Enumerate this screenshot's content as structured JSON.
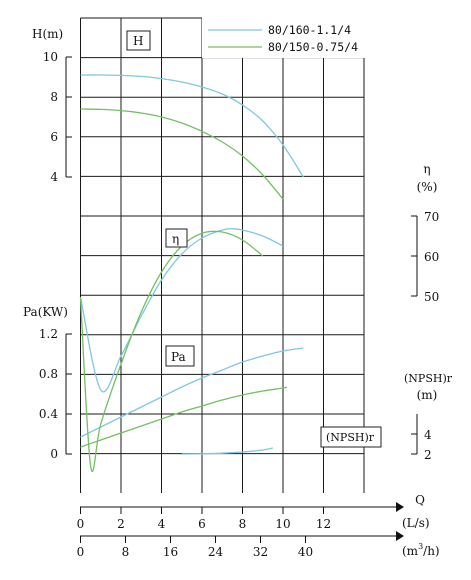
{
  "chart_data": {
    "type": "line",
    "legend": {
      "placement": "top-right",
      "entries": [
        {
          "name": "80/160-1.1/4",
          "color": "#7ec8e0"
        },
        {
          "name": "80/150-0.75/4",
          "color": "#73c060"
        }
      ]
    },
    "panel_labels": {
      "head": "H",
      "eff": "η",
      "power": "Pa",
      "npsh": "(NPSH)r"
    },
    "x_axis": {
      "label": "Q",
      "ticks": [
        0,
        2,
        4,
        6,
        8,
        10,
        12
      ],
      "unit": "(L/s)",
      "range": [
        0,
        12.5
      ],
      "secondary": {
        "ticks": [
          0,
          8,
          16,
          24,
          32,
          40
        ],
        "unit_main": "(m",
        "unit_sup": "3",
        "unit_tail": "/h)"
      }
    },
    "head_axis": {
      "title": "H(m)",
      "ticks": [
        4,
        6,
        8,
        10
      ],
      "range": [
        4,
        10
      ]
    },
    "eff_axis": {
      "title": "η",
      "unit": "(%)",
      "ticks": [
        50,
        60,
        70
      ],
      "range": [
        50,
        70
      ]
    },
    "power_axis": {
      "title": "Pa(KW)",
      "ticks": [
        "0",
        "0.4",
        "0.8",
        "1.2"
      ],
      "range": [
        0,
        1.2
      ]
    },
    "npsh_axis": {
      "title": "(NPSH)r",
      "unit": "(m)",
      "ticks": [
        2,
        4
      ],
      "range": [
        2,
        4
      ]
    },
    "grid": true,
    "series": [
      {
        "name": "80/160-1.1/4",
        "color": "#7ec8e0",
        "head": [
          [
            0,
            9.1
          ],
          [
            1,
            9.1
          ],
          [
            2,
            9.08
          ],
          [
            3,
            9.03
          ],
          [
            4,
            8.92
          ],
          [
            5,
            8.75
          ],
          [
            6,
            8.5
          ],
          [
            7,
            8.15
          ],
          [
            8,
            7.6
          ],
          [
            9,
            6.8
          ],
          [
            10,
            5.6
          ],
          [
            11,
            4.0
          ]
        ],
        "efficiency": [
          [
            0,
            49.7
          ],
          [
            1,
            26.5
          ],
          [
            2,
            35
          ],
          [
            3,
            45
          ],
          [
            4,
            54
          ],
          [
            5,
            60.5
          ],
          [
            6,
            64.5
          ],
          [
            7,
            66.5
          ],
          [
            7.5,
            66.8
          ],
          [
            8,
            66.5
          ],
          [
            9,
            65
          ],
          [
            10,
            62.5
          ]
        ],
        "power": [
          [
            0,
            0.17
          ],
          [
            1,
            0.27
          ],
          [
            2,
            0.37
          ],
          [
            3,
            0.47
          ],
          [
            4,
            0.57
          ],
          [
            5,
            0.67
          ],
          [
            6,
            0.76
          ],
          [
            7,
            0.84
          ],
          [
            8,
            0.92
          ],
          [
            9,
            0.98
          ],
          [
            10,
            1.03
          ],
          [
            11,
            1.06
          ]
        ],
        "npsh": [
          [
            5,
            2.0
          ],
          [
            6,
            2.02
          ],
          [
            7,
            2.08
          ],
          [
            8,
            2.2
          ],
          [
            9,
            2.4
          ],
          [
            9.5,
            2.6
          ]
        ]
      },
      {
        "name": "80/150-0.75/4",
        "color": "#73c060",
        "head": [
          [
            0,
            7.4
          ],
          [
            1,
            7.38
          ],
          [
            2,
            7.32
          ],
          [
            3,
            7.2
          ],
          [
            4,
            7.0
          ],
          [
            5,
            6.7
          ],
          [
            6,
            6.28
          ],
          [
            7,
            5.75
          ],
          [
            8,
            5.05
          ],
          [
            9,
            4.1
          ],
          [
            10,
            2.9
          ]
        ],
        "efficiency": [
          [
            0,
            49.7
          ],
          [
            0.5,
            7.5
          ],
          [
            1,
            18
          ],
          [
            2,
            33
          ],
          [
            3,
            46
          ],
          [
            4,
            56
          ],
          [
            5,
            62.5
          ],
          [
            6,
            65.7
          ],
          [
            7,
            66
          ],
          [
            8,
            64
          ],
          [
            9,
            60
          ]
        ],
        "power": [
          [
            0,
            0.07
          ],
          [
            1,
            0.14
          ],
          [
            2,
            0.21
          ],
          [
            3,
            0.28
          ],
          [
            4,
            0.35
          ],
          [
            5,
            0.42
          ],
          [
            6,
            0.48
          ],
          [
            7,
            0.54
          ],
          [
            8,
            0.59
          ],
          [
            9,
            0.63
          ],
          [
            10,
            0.66
          ],
          [
            10.2,
            0.67
          ]
        ]
      }
    ]
  }
}
